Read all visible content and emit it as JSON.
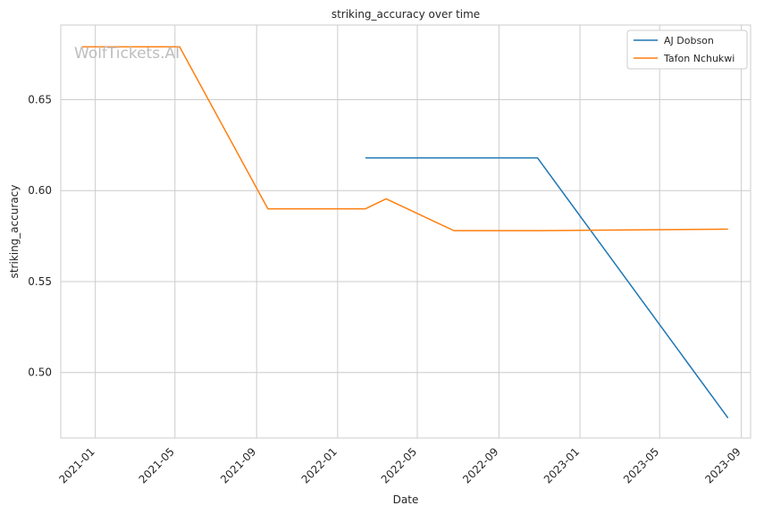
{
  "chart_data": {
    "type": "line",
    "title": "striking_accuracy over time",
    "xlabel": "Date",
    "ylabel": "striking_accuracy",
    "watermark": "WolfTickets.AI",
    "x_range": [
      "2020-11-10",
      "2023-09-15"
    ],
    "ylim": [
      0.464,
      0.691
    ],
    "x_ticks": [
      "2021-01",
      "2021-05",
      "2021-09",
      "2022-01",
      "2022-05",
      "2022-09",
      "2023-01",
      "2023-05",
      "2023-09"
    ],
    "y_ticks": [
      "0.50",
      "0.55",
      "0.60",
      "0.65"
    ],
    "grid": true,
    "legend_position": "top-right",
    "series": [
      {
        "name": "AJ Dobson",
        "color": "#1f77b4",
        "points": [
          {
            "x": "2022-02-12",
            "y": 0.618
          },
          {
            "x": "2022-10-29",
            "y": 0.618
          },
          {
            "x": "2023-08-12",
            "y": 0.475
          }
        ]
      },
      {
        "name": "Tafon Nchukwi",
        "color": "#ff7f0e",
        "points": [
          {
            "x": "2020-12-12",
            "y": 0.679
          },
          {
            "x": "2021-05-08",
            "y": 0.679
          },
          {
            "x": "2021-09-18",
            "y": 0.59
          },
          {
            "x": "2022-02-12",
            "y": 0.59
          },
          {
            "x": "2022-03-15",
            "y": 0.5955
          },
          {
            "x": "2022-06-25",
            "y": 0.578
          },
          {
            "x": "2022-10-29",
            "y": 0.578
          },
          {
            "x": "2023-08-12",
            "y": 0.5788
          }
        ]
      }
    ]
  }
}
